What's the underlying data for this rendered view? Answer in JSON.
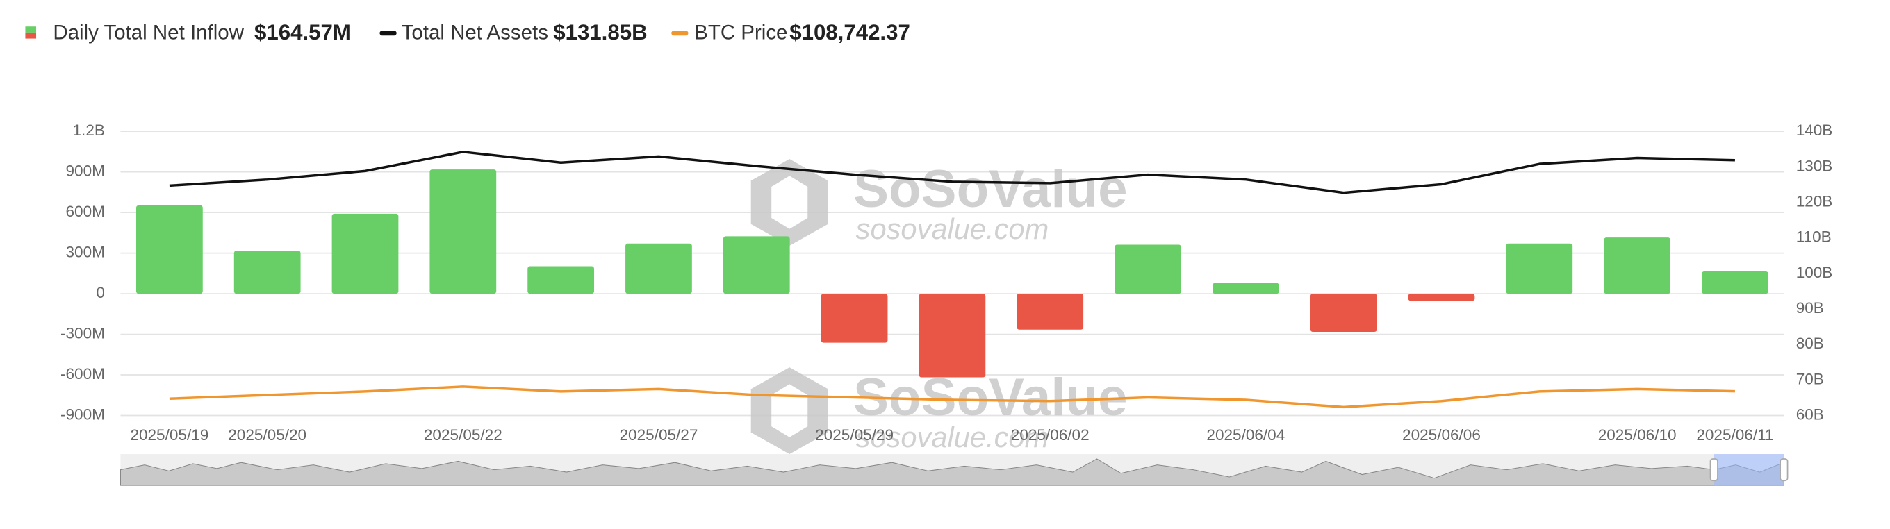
{
  "chart_data": {
    "type": "bar",
    "categories": [
      "2025/05/19",
      "2025/05/20",
      null,
      "2025/05/22",
      null,
      "2025/05/27",
      null,
      "2025/05/29",
      null,
      "2025/06/02",
      null,
      "2025/06/04",
      null,
      "2025/06/06",
      null,
      "2025/06/10",
      "2025/06/11"
    ],
    "series": [
      {
        "name": "Daily Total Net Inflow",
        "latest": "$164.57M",
        "type": "bar",
        "positive_color": "#68cf66",
        "negative_color": "#ea5646",
        "values": [
          653,
          318,
          591,
          918,
          203,
          371,
          424,
          -362,
          -618,
          -265,
          362,
          79,
          -282,
          -53,
          371,
          415,
          164.57
        ]
      },
      {
        "name": "Total Net Assets",
        "latest": "$131.85B",
        "type": "line",
        "axis": "y2",
        "color": "#111111",
        "values": [
          124.7,
          126.4,
          128.8,
          134.2,
          131.2,
          132.9,
          130.2,
          127.8,
          125.8,
          125.4,
          127.8,
          126.4,
          122.7,
          125.1,
          130.8,
          132.5,
          131.85
        ]
      },
      {
        "name": "BTC Price",
        "latest": "$108,742.37",
        "type": "line",
        "color": "#f0962e",
        "values": [
          105100,
          106900,
          108700,
          111100,
          108700,
          109900,
          106900,
          105700,
          104500,
          103900,
          105700,
          104500,
          100900,
          103900,
          108700,
          109900,
          108742.37
        ]
      }
    ],
    "ylim": [
      -900,
      1200
    ],
    "yticks": [
      {
        "value": -900,
        "label": "-900M"
      },
      {
        "value": -600,
        "label": "-600M"
      },
      {
        "value": -300,
        "label": "-300M"
      },
      0,
      {
        "value": 300,
        "label": "300M"
      },
      {
        "value": 600,
        "label": "600M"
      },
      {
        "value": 900,
        "label": "900M"
      },
      {
        "value": 1200,
        "label": "1.2B"
      }
    ],
    "y2lim": [
      60,
      140
    ],
    "y2ticks": [
      {
        "value": 60,
        "label": "60B"
      },
      {
        "value": 70,
        "label": "70B"
      },
      {
        "value": 80,
        "label": "80B"
      },
      {
        "value": 90,
        "label": "90B"
      },
      {
        "value": 100,
        "label": "100B"
      },
      {
        "value": 110,
        "label": "110B"
      },
      {
        "value": 120,
        "label": "120B"
      },
      {
        "value": 130,
        "label": "130B"
      },
      {
        "value": 140,
        "label": "140B"
      }
    ],
    "grid": true,
    "watermark": {
      "brand": "SoSoValue",
      "site": "sosovalue.com"
    }
  }
}
